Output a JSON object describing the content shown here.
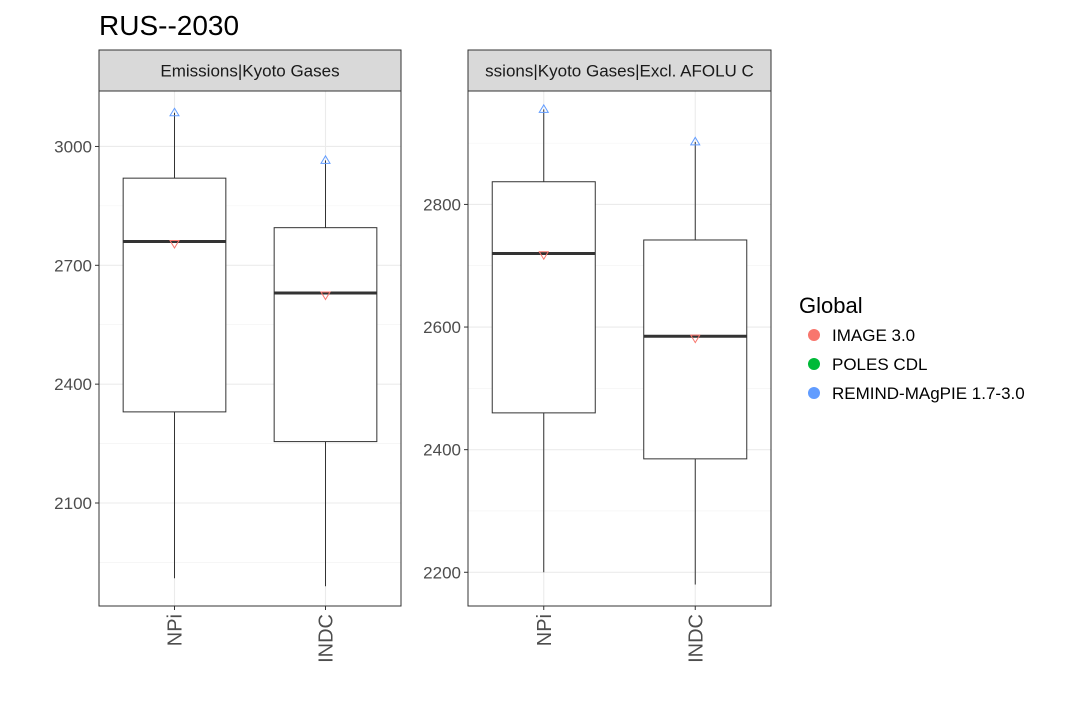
{
  "chart_data": {
    "type": "box",
    "title": "RUS--2030",
    "legend": {
      "title": "Global",
      "position": "right",
      "entries": [
        {
          "label": "IMAGE 3.0",
          "color": "#F8766D"
        },
        {
          "label": "POLES CDL",
          "color": "#00BA38"
        },
        {
          "label": "REMIND-MAgPIE 1.7-3.0",
          "color": "#619CFF"
        }
      ]
    },
    "panels": [
      {
        "strip": "Emissions|Kyoto Gases",
        "ylim": [
          1840,
          3140
        ],
        "yticks": [
          2100,
          2400,
          2700,
          3000
        ],
        "categories": [
          "NPi",
          "INDC"
        ],
        "boxes": [
          {
            "category": "NPi",
            "lower_whisker": 1910,
            "q1": 2330,
            "median": 2760,
            "q3": 2920,
            "upper_whisker": 3085,
            "points": [
              {
                "model": "REMIND-MAgPIE 1.7-3.0",
                "value": 3085,
                "shape": "triangle-up"
              },
              {
                "model": "IMAGE 3.0",
                "value": 2755,
                "shape": "triangle-down"
              }
            ]
          },
          {
            "category": "INDC",
            "lower_whisker": 1890,
            "q1": 2255,
            "median": 2630,
            "q3": 2795,
            "upper_whisker": 2965,
            "points": [
              {
                "model": "REMIND-MAgPIE 1.7-3.0",
                "value": 2965,
                "shape": "triangle-up"
              },
              {
                "model": "IMAGE 3.0",
                "value": 2625,
                "shape": "triangle-down"
              }
            ]
          }
        ]
      },
      {
        "strip": "ssions|Kyoto Gases|Excl. AFOLU C",
        "ylim": [
          2145,
          2985
        ],
        "yticks": [
          2200,
          2400,
          2600,
          2800
        ],
        "categories": [
          "NPi",
          "INDC"
        ],
        "boxes": [
          {
            "category": "NPi",
            "lower_whisker": 2200,
            "q1": 2460,
            "median": 2720,
            "q3": 2837,
            "upper_whisker": 2955,
            "points": [
              {
                "model": "REMIND-MAgPIE 1.7-3.0",
                "value": 2955,
                "shape": "triangle-up"
              },
              {
                "model": "IMAGE 3.0",
                "value": 2718,
                "shape": "triangle-down"
              }
            ]
          },
          {
            "category": "INDC",
            "lower_whisker": 2180,
            "q1": 2385,
            "median": 2585,
            "q3": 2742,
            "upper_whisker": 2902,
            "points": [
              {
                "model": "REMIND-MAgPIE 1.7-3.0",
                "value": 2902,
                "shape": "triangle-up"
              },
              {
                "model": "IMAGE 3.0",
                "value": 2582,
                "shape": "triangle-down"
              }
            ]
          }
        ]
      }
    ]
  }
}
